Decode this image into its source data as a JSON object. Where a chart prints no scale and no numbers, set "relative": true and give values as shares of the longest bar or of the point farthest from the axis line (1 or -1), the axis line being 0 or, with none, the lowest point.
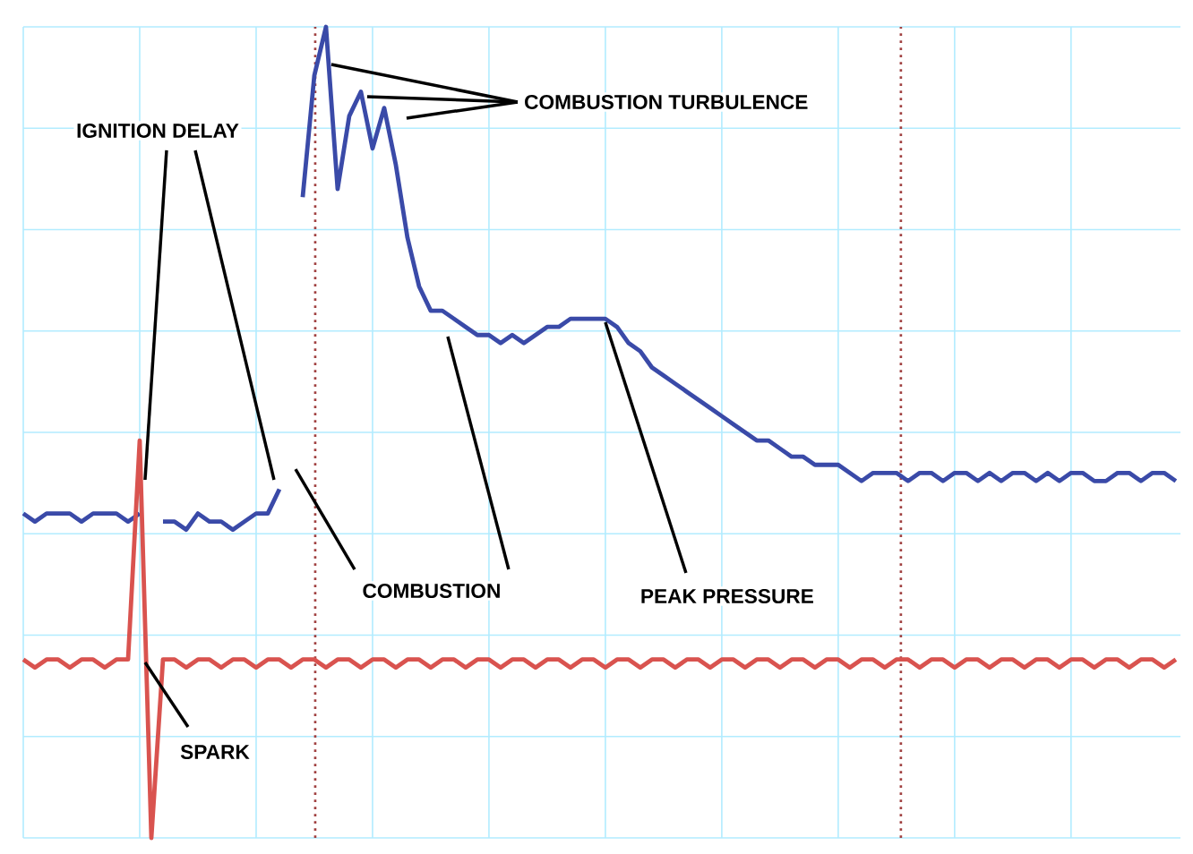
{
  "chart_data": {
    "type": "line",
    "relative": true,
    "grid": true,
    "tick_labels": false,
    "line_style": "solid",
    "categories": [
      null,
      null,
      null,
      null,
      null,
      null,
      null,
      null,
      null,
      null,
      null,
      null,
      null,
      null,
      null,
      null,
      null,
      null,
      null,
      null,
      null,
      null,
      null,
      null,
      null,
      null,
      null,
      null,
      null,
      null,
      null,
      null,
      null,
      null,
      null,
      null,
      null,
      null,
      null,
      null,
      null,
      null,
      null,
      null,
      null,
      null,
      null,
      null,
      null,
      null,
      null,
      null,
      null,
      null,
      null,
      null,
      null,
      null,
      null,
      null,
      null,
      null,
      null,
      null,
      null,
      null,
      null,
      null,
      null,
      null,
      null,
      null,
      null,
      null,
      null,
      null,
      null,
      null,
      null,
      null,
      null,
      null,
      null,
      null,
      null,
      null,
      null,
      null,
      null,
      null,
      null,
      null,
      null,
      null,
      null,
      null,
      null,
      null,
      null,
      null
    ],
    "series": [
      {
        "color": "#3a4aa8",
        "values": [
          0.4,
          0.39,
          0.4,
          0.4,
          0.4,
          0.39,
          0.4,
          0.4,
          0.4,
          0.39,
          0.4,
          null,
          0.39,
          0.39,
          0.38,
          0.4,
          0.39,
          0.39,
          0.38,
          0.39,
          0.4,
          0.4,
          0.43,
          null,
          0.79,
          0.94,
          1,
          0.8,
          0.89,
          0.92,
          0.85,
          0.9,
          0.83,
          0.74,
          0.68,
          0.65,
          0.65,
          0.64,
          0.63,
          0.62,
          0.62,
          0.61,
          0.62,
          0.61,
          0.62,
          0.63,
          0.63,
          0.64,
          0.64,
          0.64,
          0.64,
          0.63,
          0.61,
          0.6,
          0.58,
          0.57,
          0.56,
          0.55,
          0.54,
          0.53,
          0.52,
          0.51,
          0.5,
          0.49,
          0.49,
          0.48,
          0.47,
          0.47,
          0.46,
          0.46,
          0.46,
          0.45,
          0.44,
          0.45,
          0.45,
          0.45,
          0.44,
          0.45,
          0.45,
          0.44,
          0.45,
          0.45,
          0.44,
          0.45,
          0.44,
          0.45,
          0.45,
          0.44,
          0.45,
          0.44,
          0.45,
          0.45,
          0.44,
          0.44,
          0.45,
          0.45,
          0.44,
          0.45,
          0.45,
          0.44
        ]
      },
      {
        "color": "#d9534f",
        "values": [
          0.22,
          0.21,
          0.22,
          0.22,
          0.21,
          0.22,
          0.22,
          0.21,
          0.22,
          0.22,
          0.49,
          0,
          0.22,
          0.22,
          0.21,
          0.22,
          0.22,
          0.21,
          0.22,
          0.22,
          0.21,
          0.22,
          0.22,
          0.21,
          0.22,
          0.22,
          0.21,
          0.22,
          0.22,
          0.21,
          0.22,
          0.22,
          0.21,
          0.22,
          0.22,
          0.21,
          0.22,
          0.22,
          0.21,
          0.22,
          0.22,
          0.21,
          0.22,
          0.22,
          0.21,
          0.22,
          0.22,
          0.21,
          0.22,
          0.22,
          0.21,
          0.22,
          0.22,
          0.21,
          0.22,
          0.22,
          0.21,
          0.22,
          0.22,
          0.21,
          0.22,
          0.22,
          0.21,
          0.22,
          0.22,
          0.21,
          0.22,
          0.22,
          0.21,
          0.22,
          0.22,
          0.21,
          0.22,
          0.22,
          0.21,
          0.22,
          0.22,
          0.21,
          0.22,
          0.22,
          0.21,
          0.22,
          0.22,
          0.21,
          0.22,
          0.22,
          0.21,
          0.22,
          0.22,
          0.21,
          0.22,
          0.22,
          0.21,
          0.22,
          0.22,
          0.21,
          0.22,
          0.22,
          0.21,
          0.22
        ]
      }
    ],
    "annotations": [
      "IGNITION DELAY",
      "COMBUSTION TURBULENCE",
      "COMBUSTION",
      "PEAK PRESSURE",
      "SPARK"
    ]
  }
}
